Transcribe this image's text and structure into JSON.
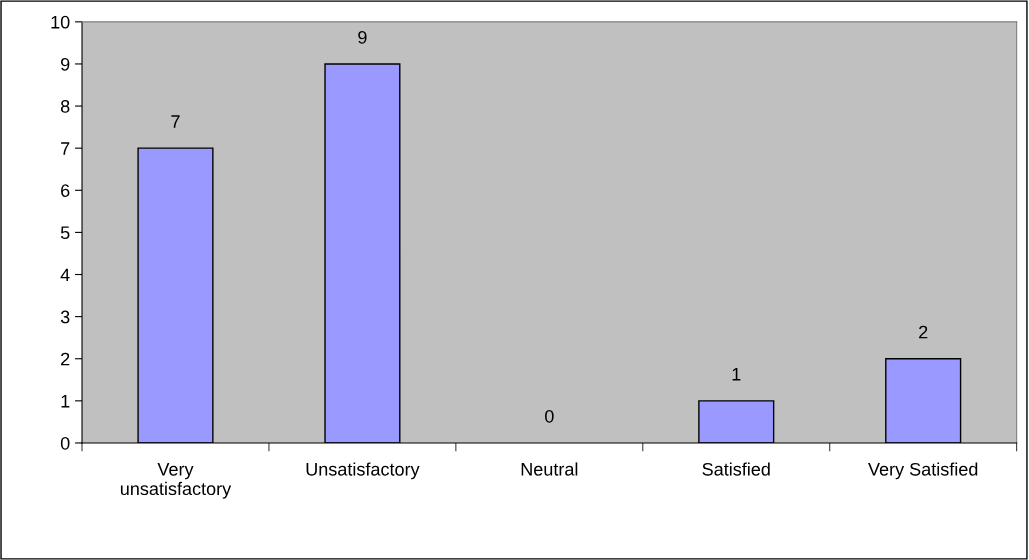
{
  "chart_data": {
    "type": "bar",
    "categories": [
      "Very\nunsatisfactory",
      "Unsatisfactory",
      "Neutral",
      "Satisfied",
      "Very Satisfied"
    ],
    "values": [
      7,
      9,
      0,
      1,
      2
    ],
    "color": "#9999ff",
    "ylim": [
      0,
      10
    ],
    "yticks": [
      0,
      1,
      2,
      3,
      4,
      5,
      6,
      7,
      8,
      9,
      10
    ],
    "data_labels": true,
    "grid": false,
    "legend": false
  }
}
